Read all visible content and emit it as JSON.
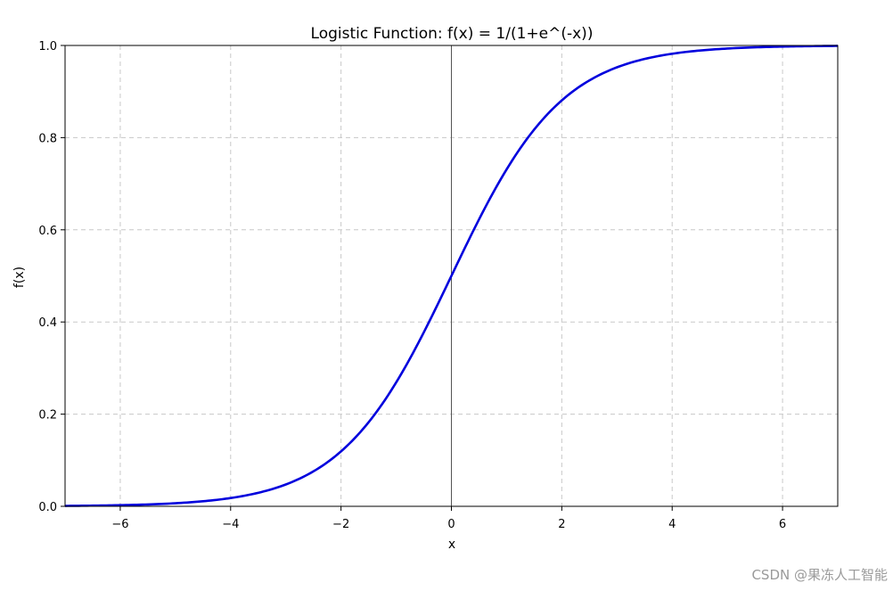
{
  "chart_data": {
    "type": "line",
    "title": "Logistic Function: f(x) = 1/(1+e^(-x))",
    "xlabel": "x",
    "ylabel": "f(x)",
    "xlim": [
      -7,
      7
    ],
    "ylim": [
      0,
      1
    ],
    "xticks": [
      -6,
      -4,
      -2,
      0,
      2,
      4,
      6
    ],
    "xtick_labels": [
      "−6",
      "−4",
      "−2",
      "0",
      "2",
      "4",
      "6"
    ],
    "yticks": [
      0,
      0.2,
      0.4,
      0.6,
      0.8,
      1.0
    ],
    "ytick_labels": [
      "0.0",
      "0.2",
      "0.4",
      "0.6",
      "0.8",
      "1.0"
    ],
    "grid": true,
    "grid_style": "dashed",
    "reference_lines": [
      {
        "axis": "x",
        "value": 0
      }
    ],
    "series": [
      {
        "color": "#0000dd",
        "x": [
          -7,
          -6,
          -5,
          -4,
          -3,
          -2.5,
          -2,
          -1.5,
          -1,
          -0.5,
          0,
          0.5,
          1,
          1.5,
          2,
          2.5,
          3,
          4,
          5,
          6,
          7
        ],
        "y": [
          0.0009,
          0.0025,
          0.0067,
          0.018,
          0.047,
          0.076,
          0.119,
          0.182,
          0.269,
          0.378,
          0.5,
          0.622,
          0.731,
          0.818,
          0.881,
          0.924,
          0.953,
          0.982,
          0.993,
          0.9975,
          0.9991
        ]
      }
    ]
  },
  "watermark": "CSDN @果冻人工智能"
}
